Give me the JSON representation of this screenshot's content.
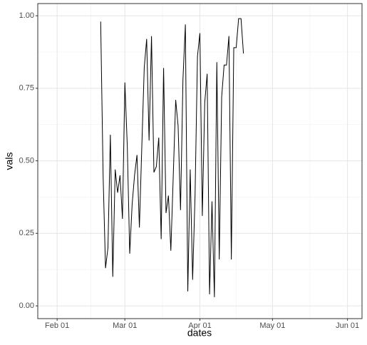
{
  "chart_data": {
    "type": "line",
    "x_label": "dates",
    "y_label": "vals",
    "x": [
      "Feb 19",
      "Feb 20",
      "Feb 21",
      "Feb 22",
      "Feb 23",
      "Feb 24",
      "Feb 25",
      "Feb 26",
      "Feb 27",
      "Feb 28",
      "Mar 01",
      "Mar 02",
      "Mar 03",
      "Mar 04",
      "Mar 05",
      "Mar 06",
      "Mar 07",
      "Mar 08",
      "Mar 09",
      "Mar 10",
      "Mar 11",
      "Mar 12",
      "Mar 13",
      "Mar 14",
      "Mar 15",
      "Mar 16",
      "Mar 17",
      "Mar 18",
      "Mar 19",
      "Mar 20",
      "Mar 21",
      "Mar 22",
      "Mar 23",
      "Mar 24",
      "Mar 25",
      "Mar 26",
      "Mar 27",
      "Mar 28",
      "Mar 29",
      "Mar 30",
      "Mar 31",
      "Apr 01",
      "Apr 02",
      "Apr 03",
      "Apr 04",
      "Apr 05",
      "Apr 06",
      "Apr 07",
      "Apr 08",
      "Apr 09",
      "Apr 10",
      "Apr 11",
      "Apr 12",
      "Apr 13",
      "Apr 14",
      "Apr 15",
      "Apr 16",
      "Apr 17",
      "Apr 18",
      "Apr 19"
    ],
    "values": [
      0.98,
      0.45,
      0.13,
      0.2,
      0.59,
      0.1,
      0.47,
      0.39,
      0.45,
      0.3,
      0.77,
      0.55,
      0.18,
      0.35,
      0.45,
      0.52,
      0.27,
      0.55,
      0.82,
      0.92,
      0.57,
      0.93,
      0.46,
      0.48,
      0.58,
      0.23,
      0.82,
      0.32,
      0.38,
      0.19,
      0.45,
      0.71,
      0.62,
      0.33,
      0.78,
      0.97,
      0.05,
      0.47,
      0.09,
      0.38,
      0.86,
      0.94,
      0.31,
      0.7,
      0.8,
      0.04,
      0.36,
      0.03,
      0.84,
      0.16,
      0.72,
      0.83,
      0.83,
      0.93,
      0.16,
      0.89,
      0.89,
      0.99,
      0.99,
      0.87
    ],
    "color": "#000000",
    "xlim": [
      "Jan 24",
      "Jun 07"
    ],
    "xticks": [
      "Feb 01",
      "Mar 01",
      "Apr 01",
      "May 01",
      "Jun 01"
    ],
    "ylim": [
      -0.044,
      1.042
    ],
    "yticks": [
      {
        "value": 0,
        "label": "0.00"
      },
      {
        "value": 0.25,
        "label": "0.25"
      },
      {
        "value": 0.5,
        "label": "0.50"
      },
      {
        "value": 0.75,
        "label": "0.75"
      },
      {
        "value": 1,
        "label": "1.00"
      }
    ],
    "grid": true
  }
}
